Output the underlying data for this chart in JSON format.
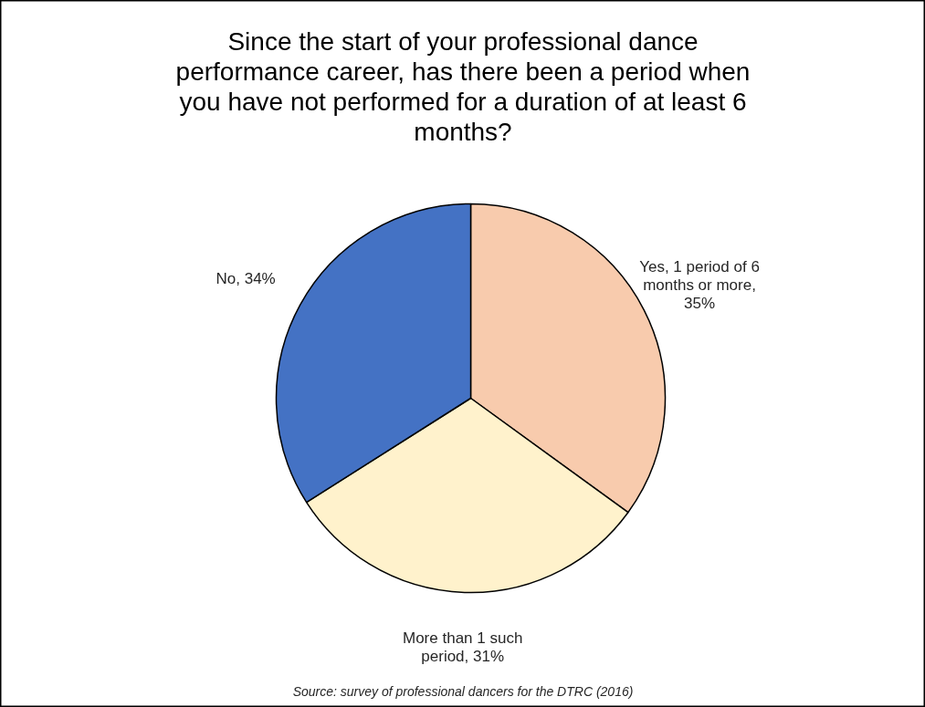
{
  "chart_data": {
    "type": "pie",
    "title": "Since the start of your professional dance performance career, has there been a period when you have not performed for a duration of at least 6 months?",
    "categories": [
      "Yes, 1 period of 6 months or more, 35%",
      "More than 1 such period, 31%",
      "No, 34%"
    ],
    "values": [
      35,
      31,
      34
    ],
    "colors": [
      "#f8cbad",
      "#fff2cc",
      "#4472c4"
    ],
    "annotations": [
      "Source: survey of professional dancers for the DTRC (2016)"
    ]
  }
}
